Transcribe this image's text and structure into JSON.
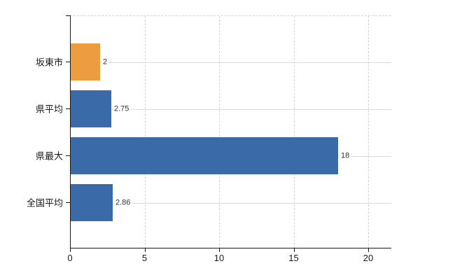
{
  "chart_data": {
    "type": "bar",
    "orientation": "horizontal",
    "title": "",
    "xlabel": "",
    "ylabel": "",
    "categories": [
      "坂東市",
      "県平均",
      "県最大",
      "全国平均"
    ],
    "values": [
      2,
      2.75,
      18,
      2.86
    ],
    "value_labels": [
      "2",
      "2.75",
      "18",
      "2.86"
    ],
    "series": [
      {
        "name": "",
        "values": [
          2,
          2.75,
          18,
          2.86
        ],
        "bar_colors": [
          "#ED9C3F",
          "#3A6AA7",
          "#3A6AA7",
          "#3A6AA7"
        ]
      }
    ],
    "x_ticks": [
      0,
      5,
      10,
      15,
      20
    ],
    "xlim": [
      0,
      21.5
    ],
    "grid": true,
    "legend_position": "none"
  },
  "colors": {
    "bar_blue": "#3A6AA7",
    "bar_orange": "#ED9C3F",
    "grid": "#D9D9D9",
    "axis": "#1A1A1A",
    "value_label": "#333333",
    "background": "#FFFFFF"
  }
}
